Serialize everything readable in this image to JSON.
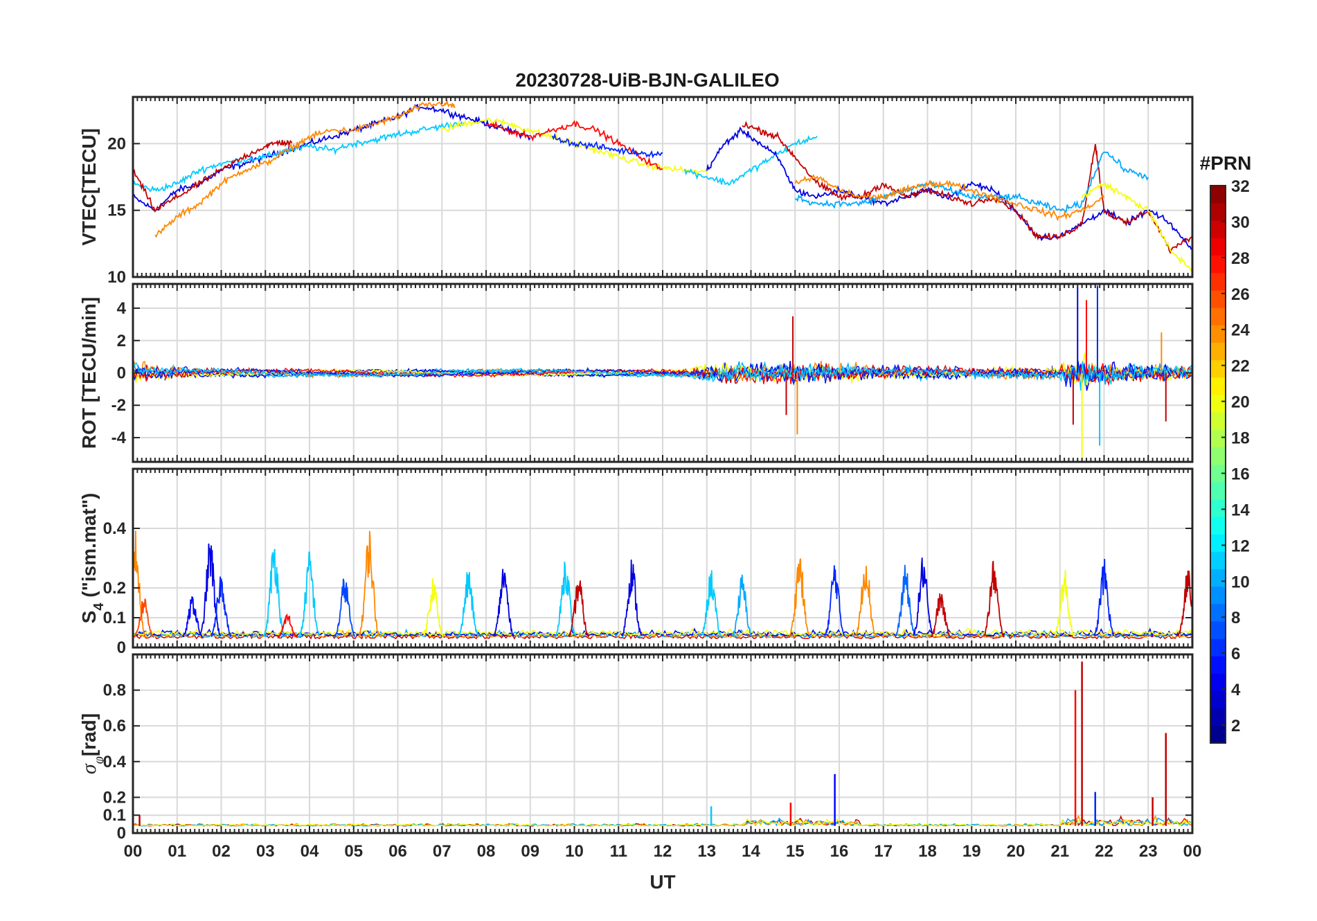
{
  "figure": {
    "title": "20230728-UiB-BJN-GALILEO",
    "xlabel": "UT",
    "colorbar": {
      "label": "#PRN",
      "range": [
        1,
        32
      ],
      "ticks": [
        "2",
        "4",
        "6",
        "8",
        "10",
        "12",
        "14",
        "16",
        "18",
        "20",
        "22",
        "24",
        "26",
        "28",
        "30",
        "32"
      ],
      "colormap": "jet"
    }
  },
  "chart_data": [
    {
      "type": "line",
      "panel": "VTEC",
      "ylabel": "VTEC[TECU]",
      "ylim": [
        10,
        23.5
      ],
      "yticks": [
        10,
        15,
        20
      ],
      "ytick_labels": [
        "10",
        "15",
        "20"
      ],
      "xlim": [
        0,
        24
      ],
      "xtick_labels": [
        "00",
        "01",
        "02",
        "03",
        "04",
        "05",
        "06",
        "07",
        "08",
        "09",
        "10",
        "11",
        "12",
        "13",
        "14",
        "15",
        "16",
        "17",
        "18",
        "19",
        "20",
        "21",
        "22",
        "23",
        "00"
      ],
      "grid": true,
      "series": [
        {
          "prn": 4,
          "x": [
            0,
            0.5,
            1,
            1.5,
            2,
            2.5,
            3,
            3.5,
            4,
            4.5,
            5,
            5.5,
            6,
            6.5,
            7,
            7.5,
            8,
            8.5,
            9
          ],
          "y": [
            16,
            15,
            16.5,
            17,
            18,
            18.5,
            19,
            19.5,
            20,
            20.5,
            21,
            21.5,
            22,
            22.8,
            22.5,
            22,
            21.5,
            21,
            20.5
          ]
        },
        {
          "prn": 11,
          "x": [
            0,
            0.5,
            1,
            1.5,
            2,
            2.5,
            3,
            3.5,
            4,
            4.5,
            5,
            5.5,
            6,
            6.5,
            7,
            7.5
          ],
          "y": [
            17,
            16.5,
            17,
            18,
            18.5,
            18.8,
            19,
            19.5,
            19.8,
            19.5,
            20,
            20.3,
            20.7,
            21,
            21.3,
            21.6
          ]
        },
        {
          "prn": 24,
          "x": [
            0.5,
            1,
            1.5,
            2,
            2.5,
            3,
            3.5,
            4,
            4.5,
            5,
            5.5,
            6,
            6.5,
            7,
            7.3
          ],
          "y": [
            13,
            14.5,
            15.5,
            17,
            18,
            18.5,
            19.5,
            20.5,
            21,
            21,
            21.5,
            22,
            22.8,
            23,
            22.8
          ]
        },
        {
          "prn": 30,
          "x": [
            0,
            0.5,
            1,
            1.5,
            2,
            2.5,
            3,
            3.3,
            3.6
          ],
          "y": [
            18,
            15,
            16,
            17,
            18,
            19,
            19.8,
            20.1,
            20
          ]
        },
        {
          "prn": 20,
          "x": [
            7,
            7.5,
            8,
            8.5,
            9,
            9.5,
            10,
            10.5,
            11,
            11.5,
            12,
            12.5,
            13
          ],
          "y": [
            21,
            21.5,
            21.8,
            21.5,
            21,
            20.5,
            20,
            19.5,
            19,
            18.5,
            18.2,
            18,
            17.8
          ]
        },
        {
          "prn": 28,
          "x": [
            8,
            8.5,
            9,
            9.5,
            10,
            10.5,
            11,
            11.5,
            12
          ],
          "y": [
            21.5,
            21,
            20.5,
            21,
            21.5,
            21,
            20,
            19,
            18
          ]
        },
        {
          "prn": 6,
          "x": [
            9.5,
            10,
            10.5,
            11,
            11.5,
            12
          ],
          "y": [
            20.5,
            20,
            19.8,
            19.5,
            19.3,
            19.2
          ]
        },
        {
          "prn": 11,
          "x": [
            12.5,
            13,
            13.5,
            14,
            14.5,
            15,
            15.5
          ],
          "y": [
            18,
            17.5,
            17,
            18,
            19,
            20,
            20.5
          ]
        },
        {
          "prn": 4,
          "x": [
            13,
            13.4,
            13.8,
            14.2,
            14.6,
            15,
            15.5,
            16,
            16.5,
            17,
            17.5,
            18,
            18.5,
            19,
            19.5,
            20,
            20.5,
            21,
            21.5,
            22,
            22.5,
            23,
            23.5,
            24
          ],
          "y": [
            18,
            20,
            21,
            20,
            19,
            16.5,
            16,
            16.5,
            16,
            15.5,
            16,
            16.5,
            16,
            17,
            16.5,
            15,
            13,
            13,
            14,
            15,
            14,
            15,
            14,
            12
          ]
        },
        {
          "prn": 30,
          "x": [
            13.8,
            14.2,
            14.6,
            15,
            15.5,
            16,
            16.5,
            17,
            17.5,
            18,
            18.5,
            19,
            19.5,
            20,
            20.5,
            21,
            21.5,
            21.8,
            22,
            22.5,
            23,
            23.5,
            24
          ],
          "y": [
            21.5,
            21,
            20.5,
            19,
            17,
            16,
            16,
            17,
            16,
            16.5,
            16,
            15.5,
            16,
            15,
            13,
            13,
            14,
            20,
            15,
            14,
            15,
            12,
            13
          ]
        },
        {
          "prn": 10,
          "x": [
            15,
            15.5,
            16,
            16.5,
            17,
            17.5,
            18,
            18.5,
            19,
            19.5,
            20,
            20.5,
            21,
            21.5,
            22,
            22.5,
            23
          ],
          "y": [
            16,
            15.5,
            15.5,
            15.5,
            16,
            16.5,
            17,
            16.5,
            16,
            16,
            16,
            15.5,
            15,
            15.5,
            19.5,
            18,
            17.5
          ]
        },
        {
          "prn": 24,
          "x": [
            15,
            15.5,
            16,
            16.5,
            17,
            17.5,
            18,
            18.5,
            19,
            19.5,
            20,
            20.5,
            21,
            21.5,
            22
          ],
          "y": [
            17,
            17.5,
            16.5,
            16,
            16,
            16.5,
            17,
            17,
            16.5,
            16,
            15.5,
            15,
            14.5,
            15,
            16
          ]
        },
        {
          "prn": 20,
          "x": [
            21.5,
            22,
            22.5,
            23,
            23.5,
            24
          ],
          "y": [
            16,
            17,
            16,
            15,
            12,
            10.5
          ]
        }
      ]
    },
    {
      "type": "line",
      "panel": "ROT",
      "ylabel": "ROT [TECU/min]",
      "ylim": [
        -5.5,
        5.5
      ],
      "yticks": [
        -4,
        -2,
        0,
        2,
        4
      ],
      "ytick_labels": [
        "-4",
        "-2",
        "0",
        "2",
        "4"
      ],
      "xlim": [
        0,
        24
      ],
      "grid": true,
      "envelope": {
        "x": [
          0,
          0.5,
          1,
          1.5,
          2,
          2.5,
          3,
          3.5,
          4,
          4.5,
          5,
          5.5,
          6,
          6.5,
          7,
          7.5,
          8,
          8.5,
          9,
          9.5,
          10,
          10.5,
          11,
          11.5,
          12,
          12.5,
          13,
          13.5,
          14,
          14.5,
          15,
          15.5,
          16,
          16.5,
          17,
          17.5,
          18,
          18.5,
          19,
          19.5,
          20,
          20.5,
          21,
          21.5,
          22,
          22.5,
          23,
          23.5,
          24
        ],
        "amp": [
          1.6,
          1.0,
          0.7,
          0.5,
          0.4,
          0.4,
          0.4,
          0.4,
          0.4,
          0.3,
          0.3,
          0.3,
          0.3,
          0.3,
          0.3,
          0.3,
          0.3,
          0.3,
          0.3,
          0.3,
          0.3,
          0.3,
          0.3,
          0.3,
          0.3,
          0.4,
          1.2,
          1.4,
          1.3,
          1.3,
          1.5,
          1.3,
          1.2,
          1.0,
          0.9,
          0.8,
          0.8,
          0.7,
          0.7,
          0.6,
          0.7,
          0.7,
          0.9,
          2.8,
          1.8,
          1.2,
          1.2,
          1.1,
          1.0
        ]
      },
      "spikes": [
        {
          "x": 14.95,
          "y": 3.5
        },
        {
          "x": 15.05,
          "y": -3.8
        },
        {
          "x": 14.8,
          "y": -2.6
        },
        {
          "x": 21.4,
          "y": 5.3
        },
        {
          "x": 21.5,
          "y": -5.5
        },
        {
          "x": 21.6,
          "y": 4.5
        },
        {
          "x": 21.85,
          "y": 5.4
        },
        {
          "x": 21.9,
          "y": -4.5
        },
        {
          "x": 21.3,
          "y": -3.2
        },
        {
          "x": 23.3,
          "y": 2.5
        },
        {
          "x": 23.4,
          "y": -3.0
        }
      ],
      "prns": [
        30,
        24,
        10,
        4,
        20,
        28,
        6,
        11
      ]
    },
    {
      "type": "line",
      "panel": "S4",
      "ylabel_main": "S",
      "ylabel_sub": "4",
      "ylabel_rest": " (\"ism.mat\")",
      "ylim": [
        0,
        0.6
      ],
      "yticks": [
        0,
        0.1,
        0.2,
        0.4
      ],
      "ytick_labels": [
        "0",
        "0.1",
        "0.2",
        "0.4"
      ],
      "xlim": [
        0,
        24
      ],
      "grid": true,
      "baseline": 0.03,
      "bursts": [
        {
          "prn": 24,
          "x": 0.05,
          "peak": 0.4
        },
        {
          "prn": 26,
          "x": 0.25,
          "peak": 0.18
        },
        {
          "prn": 5,
          "x": 1.35,
          "peak": 0.18
        },
        {
          "prn": 4,
          "x": 1.75,
          "peak": 0.38
        },
        {
          "prn": 6,
          "x": 2.0,
          "peak": 0.26
        },
        {
          "prn": 11,
          "x": 3.2,
          "peak": 0.38
        },
        {
          "prn": 28,
          "x": 3.5,
          "peak": 0.12
        },
        {
          "prn": 11,
          "x": 4.0,
          "peak": 0.33
        },
        {
          "prn": 7,
          "x": 4.8,
          "peak": 0.25
        },
        {
          "prn": 24,
          "x": 5.35,
          "peak": 0.41
        },
        {
          "prn": 20,
          "x": 6.8,
          "peak": 0.25
        },
        {
          "prn": 11,
          "x": 7.6,
          "peak": 0.27
        },
        {
          "prn": 4,
          "x": 8.4,
          "peak": 0.29
        },
        {
          "prn": 11,
          "x": 9.8,
          "peak": 0.32
        },
        {
          "prn": 30,
          "x": 10.1,
          "peak": 0.25
        },
        {
          "prn": 4,
          "x": 11.3,
          "peak": 0.31
        },
        {
          "prn": 11,
          "x": 13.1,
          "peak": 0.27
        },
        {
          "prn": 10,
          "x": 13.8,
          "peak": 0.25
        },
        {
          "prn": 24,
          "x": 15.1,
          "peak": 0.33
        },
        {
          "prn": 6,
          "x": 15.9,
          "peak": 0.3
        },
        {
          "prn": 24,
          "x": 16.6,
          "peak": 0.33
        },
        {
          "prn": 8,
          "x": 17.5,
          "peak": 0.28
        },
        {
          "prn": 4,
          "x": 17.9,
          "peak": 0.32
        },
        {
          "prn": 30,
          "x": 18.3,
          "peak": 0.2
        },
        {
          "prn": 30,
          "x": 19.5,
          "peak": 0.3
        },
        {
          "prn": 20,
          "x": 21.1,
          "peak": 0.27
        },
        {
          "prn": 6,
          "x": 22.0,
          "peak": 0.3
        },
        {
          "prn": 30,
          "x": 23.9,
          "peak": 0.27
        }
      ]
    },
    {
      "type": "line",
      "panel": "sigma_phi",
      "ylabel_main": "σ",
      "ylabel_sub": "φ",
      "ylabel_rest": "[rad]",
      "ylim": [
        0,
        1.0
      ],
      "yticks": [
        0,
        0.1,
        0.2,
        0.4,
        0.6,
        0.8
      ],
      "ytick_labels": [
        "0",
        "0.1",
        "0.2",
        "0.4",
        "0.6",
        "0.8"
      ],
      "xlim": [
        0,
        24
      ],
      "grid": true,
      "baseline": 0.04,
      "spikes": [
        {
          "prn": 30,
          "x": 0.15,
          "y": 0.1
        },
        {
          "prn": 11,
          "x": 13.1,
          "y": 0.15
        },
        {
          "prn": 28,
          "x": 14.9,
          "y": 0.17
        },
        {
          "prn": 5,
          "x": 15.9,
          "y": 0.33
        },
        {
          "prn": 28,
          "x": 21.35,
          "y": 0.8
        },
        {
          "prn": 30,
          "x": 21.5,
          "y": 0.96
        },
        {
          "prn": 6,
          "x": 21.8,
          "y": 0.23
        },
        {
          "prn": 30,
          "x": 23.1,
          "y": 0.2
        },
        {
          "prn": 30,
          "x": 23.4,
          "y": 0.56
        }
      ]
    }
  ]
}
